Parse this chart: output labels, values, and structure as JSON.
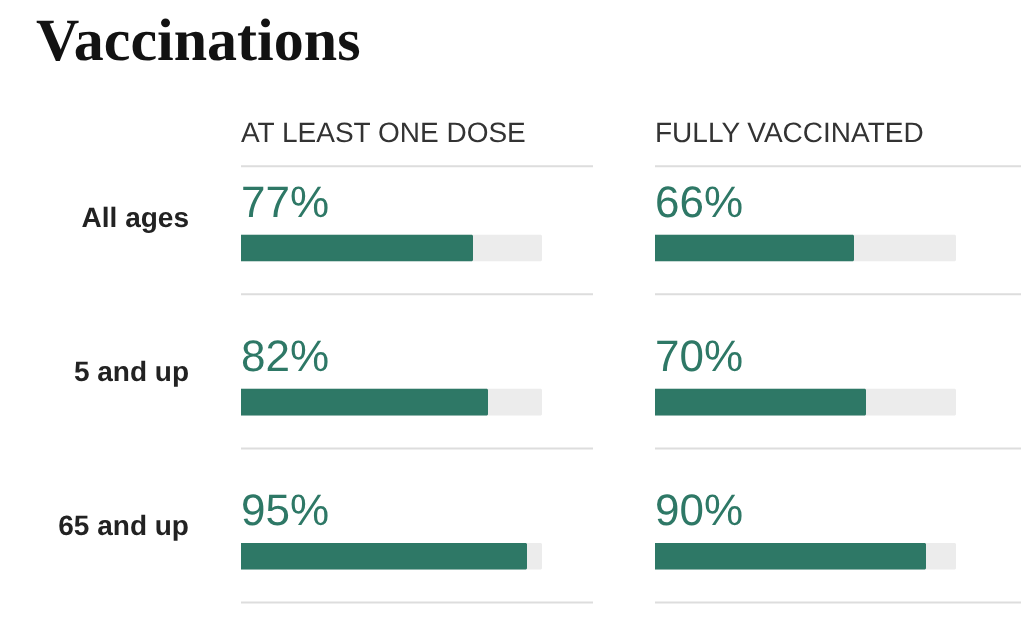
{
  "chart_data": [
    {
      "type": "bar",
      "orientation": "horizontal",
      "title": "Vaccinations",
      "subtitle": "AT LEAST ONE DOSE",
      "categories": [
        "All ages",
        "5 and up",
        "65 and up"
      ],
      "xlim": [
        0,
        100
      ],
      "tick_labels": "y",
      "series": [
        {
          "color": "#2e7866",
          "values": [
            77,
            82,
            95
          ],
          "value_labels": [
            "77%",
            "82%",
            "95%"
          ]
        }
      ]
    },
    {
      "type": "bar",
      "orientation": "horizontal",
      "subtitle": "FULLY VACCINATED",
      "categories": [
        null,
        null,
        null
      ],
      "xlim": [
        0,
        100
      ],
      "tick_labels": false,
      "series": [
        {
          "color": "#2e7866",
          "values": [
            66,
            70,
            90
          ],
          "value_labels": [
            "66%",
            "70%",
            "90%"
          ]
        }
      ]
    }
  ]
}
